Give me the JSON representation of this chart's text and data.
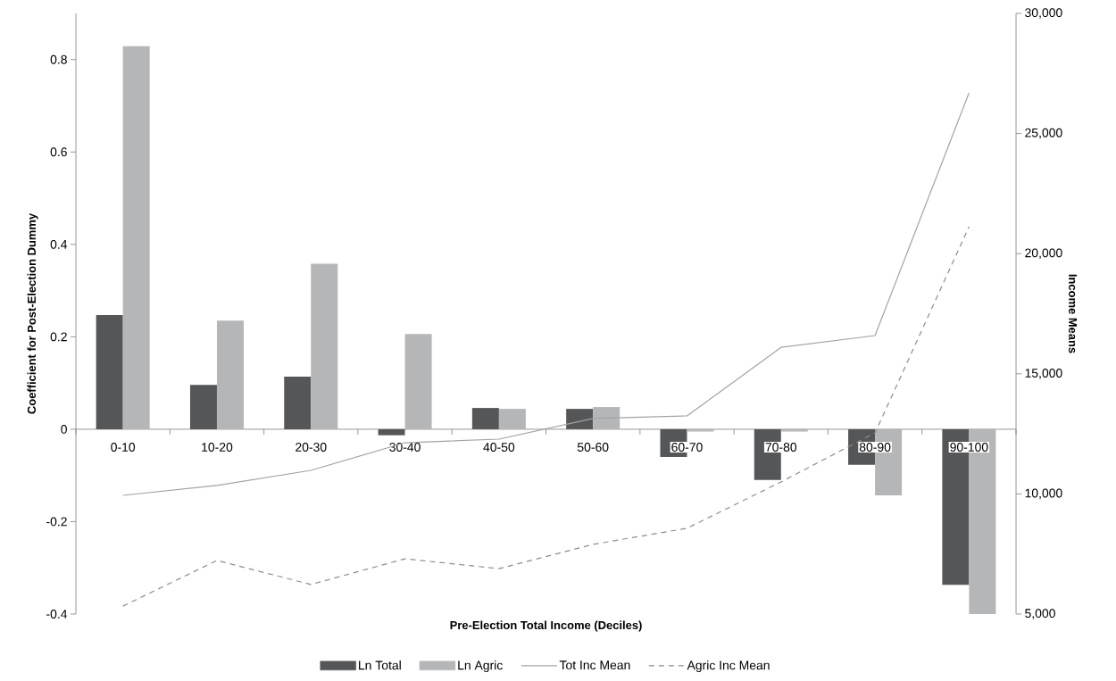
{
  "chart_data": {
    "type": "bar",
    "xlabel": "Pre-Election Total Income (Deciles)",
    "ylabel": "Coefficient for Post-Election Dummy",
    "y2label": "Income Means",
    "categories": [
      "0-10",
      "10-20",
      "20-30",
      "30-40",
      "40-50",
      "50-60",
      "60-70",
      "70-80",
      "80-90",
      "90-100"
    ],
    "series": [
      {
        "name": "Ln Total",
        "color": "#545658",
        "values": [
          0.247,
          0.096,
          0.114,
          -0.013,
          0.046,
          0.044,
          -0.06,
          -0.11,
          -0.077,
          -0.337
        ]
      },
      {
        "name": "Ln Agric",
        "color": "#b5b6b8",
        "values": [
          0.829,
          0.235,
          0.358,
          0.206,
          0.044,
          0.048,
          -0.005,
          -0.005,
          -0.143,
          -0.4
        ]
      },
      {
        "name": "Tot Inc Mean",
        "type": "line",
        "axis": "y2",
        "color": "#a3a3a3",
        "line_style": "solid",
        "values": [
          9940,
          10350,
          10980,
          12130,
          12280,
          13140,
          13250,
          16100,
          16590,
          26690
        ]
      },
      {
        "name": "Agric Inc Mean",
        "type": "line",
        "axis": "y2",
        "color": "#8c8c8c",
        "line_style": "dashed",
        "values": [
          5330,
          7230,
          6230,
          7300,
          6890,
          7900,
          8570,
          10500,
          12540,
          21120
        ]
      }
    ],
    "ylim": [
      -0.4,
      0.9
    ],
    "yticks": [
      -0.4,
      -0.2,
      0,
      0.2,
      0.4,
      0.6,
      0.8
    ],
    "y2lim": [
      5000,
      30000
    ],
    "y2ticks": [
      {
        "value": 5000,
        "label": "5,000"
      },
      {
        "value": 10000,
        "label": "10,000"
      },
      {
        "value": 15000,
        "label": "15,000"
      },
      {
        "value": 20000,
        "label": "20,000"
      },
      {
        "value": 25000,
        "label": "25,000"
      },
      {
        "value": 30000,
        "label": "30,000"
      }
    ],
    "legend": "bottom"
  }
}
